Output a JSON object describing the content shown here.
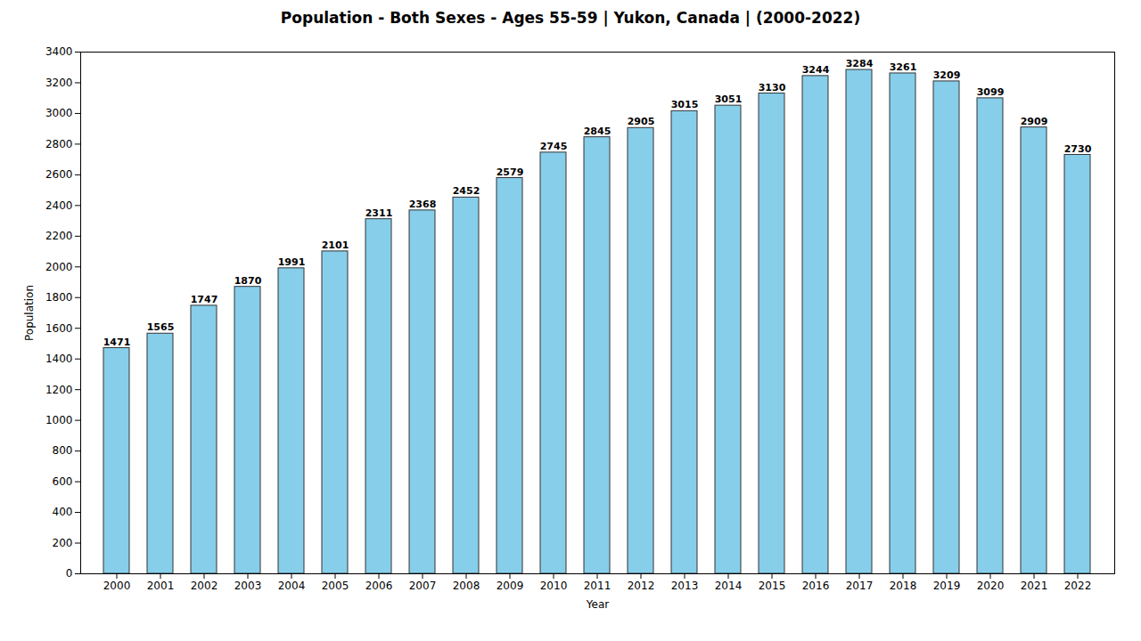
{
  "chart_data": {
    "type": "bar",
    "title": "Population - Both Sexes - Ages 55-59 | Yukon, Canada |  (2000-2022)",
    "x_label": "Year",
    "y_label": "Population",
    "categories": [
      "2000",
      "2001",
      "2002",
      "2003",
      "2004",
      "2005",
      "2006",
      "2007",
      "2008",
      "2009",
      "2010",
      "2011",
      "2012",
      "2013",
      "2014",
      "2015",
      "2016",
      "2017",
      "2018",
      "2019",
      "2020",
      "2021",
      "2022"
    ],
    "values": [
      1471,
      1565,
      1747,
      1870,
      1991,
      2101,
      2311,
      2368,
      2452,
      2579,
      2745,
      2845,
      2905,
      3015,
      3051,
      3130,
      3244,
      3284,
      3261,
      3209,
      3099,
      2909,
      2730
    ],
    "color": "#87ceeb",
    "ylim": [
      0,
      3400
    ],
    "yticks": [
      0,
      200,
      400,
      600,
      800,
      1000,
      1200,
      1400,
      1600,
      1800,
      2000,
      2200,
      2400,
      2600,
      2800,
      3000,
      3200,
      3400
    ],
    "grid": false,
    "data_labels": true
  }
}
